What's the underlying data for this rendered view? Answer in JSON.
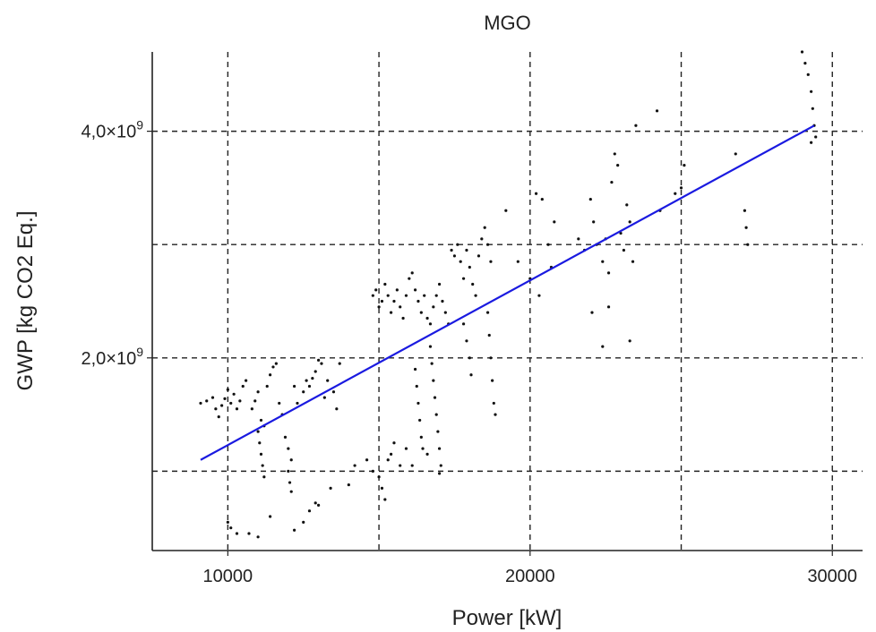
{
  "chart_data": {
    "type": "scatter",
    "title": "MGO",
    "xlabel": "Power [kW]",
    "ylabel": "GWP [kg CO2 Eq.]",
    "xlim": [
      7500,
      31000
    ],
    "ylim": [
      300000000,
      4700000000
    ],
    "x_ticks": [
      10000,
      20000,
      30000
    ],
    "x_tick_labels": [
      "10000",
      "20000",
      "30000"
    ],
    "x_grid": [
      10000,
      15000,
      20000,
      25000,
      30000
    ],
    "y_ticks": [
      2000000000,
      4000000000
    ],
    "y_tick_labels": [
      {
        "mantissa": "2,0×10",
        "exponent": "9"
      },
      {
        "mantissa": "4,0×10",
        "exponent": "9"
      }
    ],
    "y_grid": [
      1000000000,
      2000000000,
      3000000000,
      4000000000
    ],
    "grid": true,
    "series": [
      {
        "kind": "points",
        "color": "#111111",
        "points": [
          [
            9100,
            1600000000.0
          ],
          [
            9300,
            1620000000.0
          ],
          [
            9500,
            1650000000.0
          ],
          [
            9600,
            1550000000.0
          ],
          [
            9700,
            1480000000.0
          ],
          [
            9800,
            1580000000.0
          ],
          [
            9900,
            1640000000.0
          ],
          [
            10000,
            1720000000.0
          ],
          [
            10100,
            1600000000.0
          ],
          [
            10200,
            1680000000.0
          ],
          [
            10300,
            1550000000.0
          ],
          [
            10400,
            1620000000.0
          ],
          [
            10500,
            1750000000.0
          ],
          [
            10600,
            1800000000.0
          ],
          [
            10800,
            1550000000.0
          ],
          [
            10900,
            1620000000.0
          ],
          [
            11000,
            1700000000.0
          ],
          [
            11100,
            1450000000.0
          ],
          [
            11200,
            1400000000.0
          ],
          [
            11300,
            1750000000.0
          ],
          [
            11400,
            1850000000.0
          ],
          [
            11500,
            1920000000.0
          ],
          [
            11600,
            1950000000.0
          ],
          [
            11700,
            1600000000.0
          ],
          [
            11800,
            1500000000.0
          ],
          [
            11900,
            1300000000.0
          ],
          [
            12000,
            1200000000.0
          ],
          [
            12100,
            1100000000.0
          ],
          [
            12200,
            1750000000.0
          ],
          [
            12300,
            1600000000.0
          ],
          [
            12500,
            1700000000.0
          ],
          [
            12600,
            1800000000.0
          ],
          [
            12700,
            1750000000.0
          ],
          [
            12800,
            1820000000.0
          ],
          [
            12900,
            1880000000.0
          ],
          [
            13000,
            1980000000.0
          ],
          [
            13100,
            1950000000.0
          ],
          [
            13200,
            1650000000.0
          ],
          [
            13300,
            1800000000.0
          ],
          [
            13500,
            1700000000.0
          ],
          [
            13600,
            1550000000.0
          ],
          [
            13700,
            1950000000.0
          ],
          [
            11000,
            1350000000.0
          ],
          [
            11050,
            1250000000.0
          ],
          [
            11100,
            1150000000.0
          ],
          [
            11150,
            1050000000.0
          ],
          [
            11200,
            950000000.0
          ],
          [
            12000,
            1000000000.0
          ],
          [
            12050,
            900000000.0
          ],
          [
            12100,
            820000000.0
          ],
          [
            10000,
            550000000.0
          ],
          [
            10100,
            500000000.0
          ],
          [
            10300,
            450000000.0
          ],
          [
            10700,
            450000000.0
          ],
          [
            11000,
            420000000.0
          ],
          [
            11400,
            600000000.0
          ],
          [
            12200,
            480000000.0
          ],
          [
            12500,
            550000000.0
          ],
          [
            12700,
            650000000.0
          ],
          [
            12900,
            720000000.0
          ],
          [
            13000,
            700000000.0
          ],
          [
            13400,
            850000000.0
          ],
          [
            14000,
            880000000.0
          ],
          [
            14200,
            1050000000.0
          ],
          [
            14600,
            1100000000.0
          ],
          [
            14800,
            1000000000.0
          ],
          [
            15000,
            950000000.0
          ],
          [
            15100,
            850000000.0
          ],
          [
            15200,
            750000000.0
          ],
          [
            15300,
            1100000000.0
          ],
          [
            15400,
            1150000000.0
          ],
          [
            15500,
            1250000000.0
          ],
          [
            15700,
            1050000000.0
          ],
          [
            15900,
            1200000000.0
          ],
          [
            14800,
            2550000000.0
          ],
          [
            14900,
            2600000000.0
          ],
          [
            15000,
            2450000000.0
          ],
          [
            15100,
            2500000000.0
          ],
          [
            15200,
            2650000000.0
          ],
          [
            15300,
            2550000000.0
          ],
          [
            15400,
            2400000000.0
          ],
          [
            15500,
            2500000000.0
          ],
          [
            15600,
            2600000000.0
          ],
          [
            15700,
            2450000000.0
          ],
          [
            15800,
            2350000000.0
          ],
          [
            15900,
            2550000000.0
          ],
          [
            16000,
            2700000000.0
          ],
          [
            16100,
            2750000000.0
          ],
          [
            16200,
            2600000000.0
          ],
          [
            16300,
            2500000000.0
          ],
          [
            16400,
            2400000000.0
          ],
          [
            16500,
            2550000000.0
          ],
          [
            16600,
            2350000000.0
          ],
          [
            16700,
            2300000000.0
          ],
          [
            16800,
            2450000000.0
          ],
          [
            16900,
            2550000000.0
          ],
          [
            17000,
            2650000000.0
          ],
          [
            17100,
            2500000000.0
          ],
          [
            17200,
            2400000000.0
          ],
          [
            17300,
            2300000000.0
          ],
          [
            16200,
            1900000000.0
          ],
          [
            16250,
            1750000000.0
          ],
          [
            16300,
            1600000000.0
          ],
          [
            16350,
            1450000000.0
          ],
          [
            16400,
            1300000000.0
          ],
          [
            16450,
            1200000000.0
          ],
          [
            16700,
            2100000000.0
          ],
          [
            16750,
            1950000000.0
          ],
          [
            16800,
            1800000000.0
          ],
          [
            16850,
            1650000000.0
          ],
          [
            16900,
            1500000000.0
          ],
          [
            16950,
            1350000000.0
          ],
          [
            17000,
            1200000000.0
          ],
          [
            17050,
            1050000000.0
          ],
          [
            16100,
            1050000000.0
          ],
          [
            16600,
            1150000000.0
          ],
          [
            17000,
            980000000.0
          ],
          [
            17400,
            2950000000.0
          ],
          [
            17500,
            2900000000.0
          ],
          [
            17600,
            3000000000.0
          ],
          [
            17700,
            2850000000.0
          ],
          [
            17800,
            2700000000.0
          ],
          [
            17900,
            2950000000.0
          ],
          [
            18000,
            2800000000.0
          ],
          [
            18100,
            2650000000.0
          ],
          [
            18200,
            2550000000.0
          ],
          [
            18300,
            2900000000.0
          ],
          [
            18400,
            3050000000.0
          ],
          [
            18500,
            3150000000.0
          ],
          [
            18600,
            3000000000.0
          ],
          [
            18700,
            2850000000.0
          ],
          [
            17800,
            2300000000.0
          ],
          [
            17900,
            2150000000.0
          ],
          [
            18000,
            2000000000.0
          ],
          [
            18050,
            1850000000.0
          ],
          [
            18600,
            2400000000.0
          ],
          [
            18650,
            2200000000.0
          ],
          [
            18700,
            2000000000.0
          ],
          [
            18750,
            1800000000.0
          ],
          [
            18800,
            1600000000.0
          ],
          [
            18850,
            1500000000.0
          ],
          [
            19200,
            3300000000.0
          ],
          [
            19600,
            2850000000.0
          ],
          [
            20000,
            2700000000.0
          ],
          [
            20300,
            2550000000.0
          ],
          [
            20600,
            3000000000.0
          ],
          [
            20700,
            2800000000.0
          ],
          [
            20800,
            3200000000.0
          ],
          [
            20200,
            3450000000.0
          ],
          [
            20400,
            3400000000.0
          ],
          [
            21600,
            3050000000.0
          ],
          [
            21800,
            2950000000.0
          ],
          [
            22000,
            3400000000.0
          ],
          [
            22100,
            3200000000.0
          ],
          [
            22200,
            3000000000.0
          ],
          [
            22400,
            2850000000.0
          ],
          [
            22500,
            3050000000.0
          ],
          [
            22600,
            2750000000.0
          ],
          [
            22700,
            3550000000.0
          ],
          [
            22800,
            3800000000.0
          ],
          [
            22900,
            3700000000.0
          ],
          [
            23000,
            3100000000.0
          ],
          [
            23100,
            2950000000.0
          ],
          [
            23200,
            3350000000.0
          ],
          [
            23300,
            3200000000.0
          ],
          [
            23400,
            2850000000.0
          ],
          [
            22050,
            2400000000.0
          ],
          [
            22400,
            2100000000.0
          ],
          [
            23300,
            2150000000.0
          ],
          [
            22600,
            2450000000.0
          ],
          [
            23500,
            4050000000.0
          ],
          [
            24200,
            4180000000.0
          ],
          [
            24300,
            3300000000.0
          ],
          [
            24800,
            3450000000.0
          ],
          [
            25000,
            3500000000.0
          ],
          [
            25100,
            3700000000.0
          ],
          [
            26800,
            3800000000.0
          ],
          [
            27100,
            3300000000.0
          ],
          [
            27150,
            3150000000.0
          ],
          [
            27200,
            3000000000.0
          ],
          [
            29100,
            4600000000.0
          ],
          [
            29200,
            4500000000.0
          ],
          [
            29300,
            4350000000.0
          ],
          [
            29350,
            4200000000.0
          ],
          [
            29400,
            4050000000.0
          ],
          [
            29450,
            3950000000.0
          ],
          [
            29300,
            3900000000.0
          ],
          [
            29000,
            4700000000.0
          ]
        ]
      },
      {
        "kind": "fit",
        "color": "#1a1ae0",
        "x": [
          9100,
          29400
        ],
        "y": [
          1100000000.0,
          4050000000.0
        ]
      }
    ]
  }
}
